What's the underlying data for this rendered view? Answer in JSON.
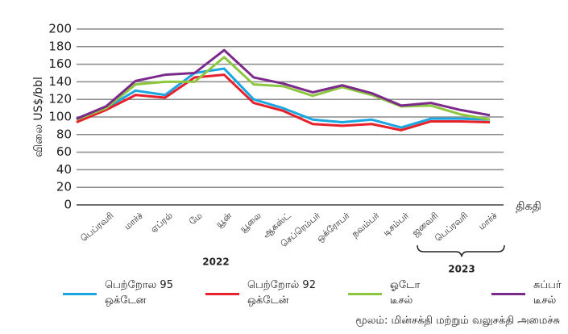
{
  "chart_data": {
    "type": "line",
    "y_label": "விலை US$/bbl",
    "x_label": "திகதி",
    "categories": [
      null,
      "பெப்ரவரி",
      "மார்ச்",
      "ஏப்ரல்",
      "மே",
      "யூன்",
      "யூலை",
      "ஆகஸ்ட்",
      "செப்ரெம்பர்",
      "ஒக்ரோபர்",
      "நவம்பர்",
      "டிசம்பர்",
      "ஜனவரி",
      "பெப்ரவரி",
      "மார்ச்"
    ],
    "year_labels": [
      "2022",
      "2023"
    ],
    "series": [
      {
        "name": "பெற்றோல 95 ஒக்டேன",
        "color": "#1aa6e0",
        "values": [
          97,
          110,
          130,
          125,
          150,
          155,
          120,
          110,
          97,
          94,
          97,
          88,
          98,
          98,
          97
        ]
      },
      {
        "name": "பெற்றோல் 92 ஒக்டேன்",
        "color": "#e8202a",
        "values": [
          94,
          108,
          125,
          122,
          145,
          148,
          116,
          107,
          92,
          90,
          92,
          85,
          95,
          95,
          94
        ]
      },
      {
        "name": "ஓடோ டீசல்",
        "color": "#8dc63f",
        "values": [
          97,
          110,
          137,
          140,
          140,
          168,
          137,
          135,
          124,
          134,
          125,
          112,
          113,
          103,
          97
        ]
      },
      {
        "name": "சுப்பர் டீசல்",
        "color": "#7b2a8c",
        "values": [
          98,
          112,
          141,
          148,
          150,
          176,
          145,
          138,
          128,
          136,
          127,
          113,
          116,
          108,
          102
        ]
      }
    ],
    "ylim": [
      0,
      200
    ],
    "yticks": [
      0,
      20,
      40,
      60,
      80,
      100,
      120,
      140,
      160,
      180,
      200
    ],
    "grid": true,
    "source": "மூலம்: மின்சக்தி மற்றும் வலுசக்தி அமைச்சு"
  }
}
